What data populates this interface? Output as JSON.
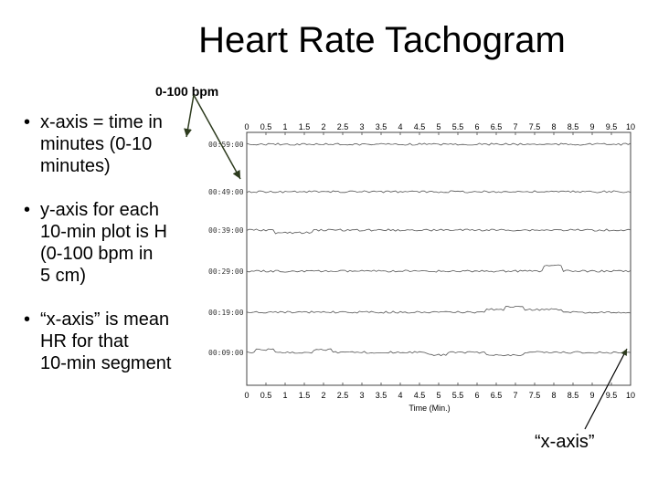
{
  "slide": {
    "title": "Heart Rate Tachogram",
    "bpm_label": "0-100 bpm",
    "bullets": [
      "x-axis = time in\nminutes (0-10\nminutes)",
      "y-axis for each\n10-min plot is H\n(0-100 bpm in\n5 cm)",
      "“x-axis” is mean\nHR for that\n10-min segment"
    ],
    "xaxis_note": "“x-axis”"
  },
  "chart_data": {
    "type": "line",
    "x_ticks": [
      "0",
      "0.5",
      "1",
      "1.5",
      "2",
      "2.5",
      "3",
      "3.5",
      "4",
      "4.5",
      "5",
      "5.5",
      "6",
      "6.5",
      "7",
      "7.5",
      "8",
      "8.5",
      "9",
      "9.5",
      "10"
    ],
    "xlabel": "Time (Min.)",
    "xlim": [
      0,
      10
    ],
    "rows": [
      {
        "label": "00:59:00",
        "values": [
          0,
          0,
          0,
          0,
          0,
          0,
          0,
          0,
          0,
          0,
          0,
          0,
          0,
          0,
          0,
          0,
          0,
          0,
          0,
          0,
          0
        ]
      },
      {
        "label": "00:49:00",
        "values": [
          0,
          0,
          0,
          0,
          0,
          0,
          0,
          0,
          0,
          0,
          0,
          0,
          0,
          0,
          0,
          0,
          0,
          0,
          0,
          0,
          0
        ]
      },
      {
        "label": "00:39:00",
        "values": [
          0,
          0,
          -1,
          -1,
          0,
          0,
          0,
          0,
          0,
          0,
          0,
          0,
          0,
          0,
          0,
          0,
          0,
          0,
          0,
          0,
          0
        ]
      },
      {
        "label": "00:29:00",
        "values": [
          0,
          0,
          0,
          0,
          0,
          0,
          0,
          0,
          0,
          0,
          0,
          0,
          0,
          0,
          0,
          0,
          2,
          0,
          0,
          0,
          0
        ]
      },
      {
        "label": "00:19:00",
        "values": [
          0,
          0,
          0,
          0,
          0,
          0,
          0,
          0,
          0,
          0,
          0,
          0,
          0,
          1,
          2,
          1,
          1,
          0,
          0,
          0,
          0
        ]
      },
      {
        "label": "00:09:00",
        "values": [
          0,
          1,
          0,
          0,
          1,
          0,
          0,
          0,
          0,
          0,
          -1,
          0,
          0,
          -1,
          -1,
          0,
          0,
          0,
          0,
          0,
          0
        ]
      }
    ]
  }
}
